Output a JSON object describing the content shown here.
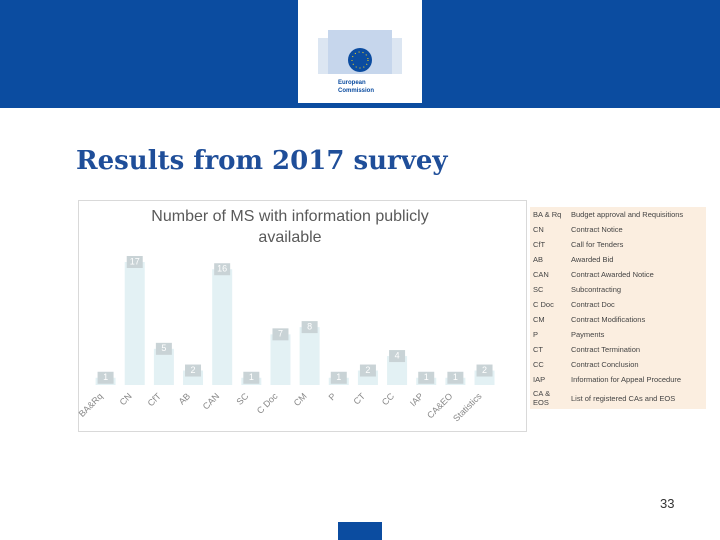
{
  "header": {
    "logo_line1": "European",
    "logo_line2": "Commission"
  },
  "title": "Results from 2017 survey",
  "chart_data": {
    "type": "bar",
    "title": "Number of MS with information publicly available",
    "categories": [
      "BA&Rq",
      "CN",
      "CfT",
      "AB",
      "CAN",
      "SC",
      "C Doc",
      "CM",
      "P",
      "CT",
      "CC",
      "IAP",
      "CA&EO",
      "Statistics"
    ],
    "values": [
      1,
      17,
      5,
      2,
      16,
      1,
      7,
      8,
      1,
      2,
      4,
      1,
      1,
      2
    ],
    "color": "#e3f1f4",
    "ylim": [
      0,
      17
    ]
  },
  "legend_table": {
    "rows": [
      [
        "BA & Rq",
        "Budget approval and Requisitions"
      ],
      [
        "CN",
        "Contract Notice"
      ],
      [
        "CfT",
        "Call for Tenders"
      ],
      [
        "AB",
        "Awarded Bid"
      ],
      [
        "CAN",
        "Contract Awarded Notice"
      ],
      [
        "SC",
        "Subcontracting"
      ],
      [
        "C Doc",
        "Contract Doc"
      ],
      [
        "CM",
        "Contract Modifications"
      ],
      [
        "P",
        "Payments"
      ],
      [
        "CT",
        "Contract Termination"
      ],
      [
        "CC",
        "Contract Conclusion"
      ],
      [
        "IAP",
        "Information for Appeal Procedure"
      ],
      [
        "CA & EOS",
        "List of registered CAs and EOS"
      ]
    ]
  },
  "page_number": "33"
}
